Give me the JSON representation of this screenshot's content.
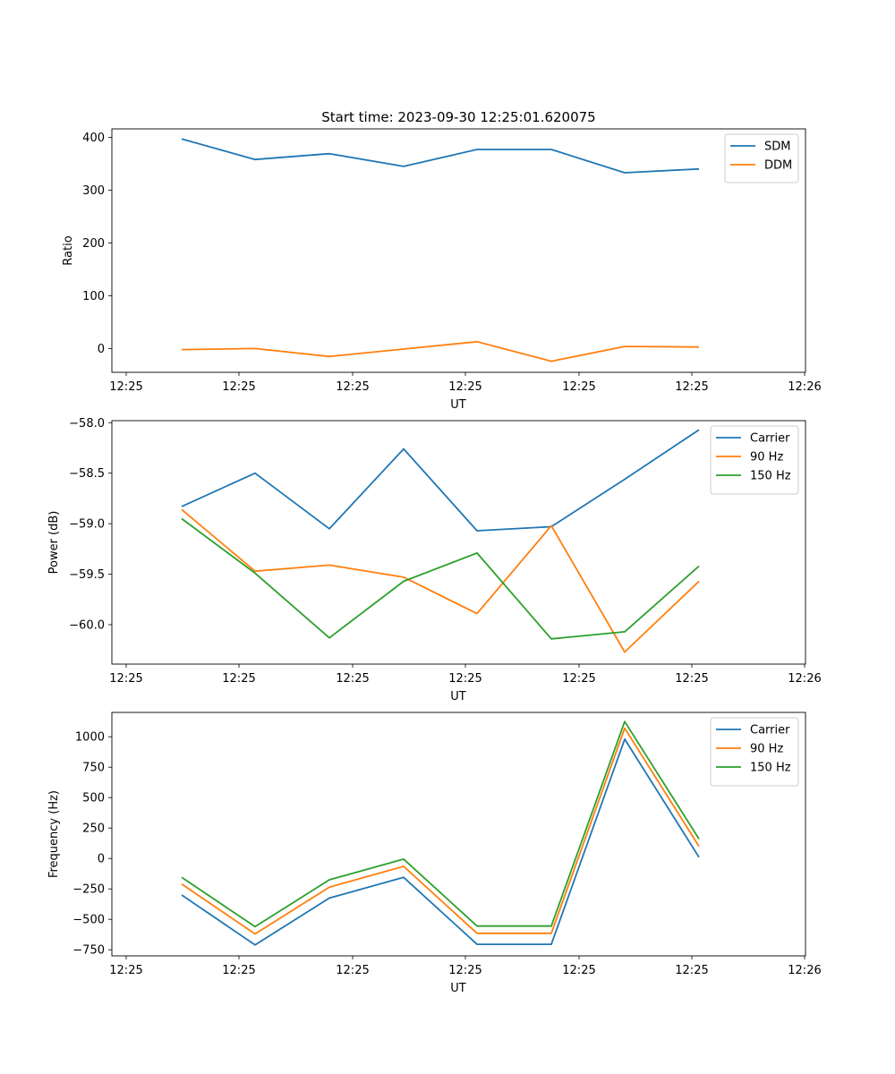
{
  "title": "Start time: 2023-09-30 12:25:01.620075",
  "chart_data": [
    {
      "type": "line",
      "ylabel": "Ratio",
      "xlabel": "UT",
      "x_ticks": [
        "12:25",
        "12:25",
        "12:25",
        "12:25",
        "12:25",
        "12:25",
        "12:25",
        "12:26"
      ],
      "ylim": [
        -45,
        416
      ],
      "y_ticks": [
        0,
        100,
        200,
        300,
        400
      ],
      "legend_position": "top-right",
      "series": [
        {
          "name": "SDM",
          "color": "#1f77b4",
          "values": [
            397,
            358,
            369,
            345,
            377,
            377,
            333,
            340
          ]
        },
        {
          "name": "DDM",
          "color": "#ff7f0e",
          "values": [
            -2,
            0,
            -15,
            -1,
            13,
            -24,
            4,
            3
          ]
        }
      ]
    },
    {
      "type": "line",
      "ylabel": "Power (dB)",
      "xlabel": "UT",
      "x_ticks": [
        "12:25",
        "12:25",
        "12:25",
        "12:25",
        "12:25",
        "12:25",
        "12:25",
        "12:26"
      ],
      "ylim": [
        -60.39,
        -57.98
      ],
      "y_ticks": [
        -58.0,
        -58.5,
        -59.0,
        -59.5,
        -60.0
      ],
      "y_tick_labels": [
        "−58.0",
        "−58.5",
        "−59.0",
        "−59.5",
        "−60.0"
      ],
      "legend_position": "top-right",
      "series": [
        {
          "name": "Carrier",
          "color": "#1f77b4",
          "values": [
            -58.83,
            -58.5,
            -59.05,
            -58.26,
            -59.07,
            -59.03,
            -58.56,
            -58.07
          ]
        },
        {
          "name": "90 Hz",
          "color": "#ff7f0e",
          "values": [
            -58.86,
            -59.47,
            -59.41,
            -59.53,
            -59.89,
            -59.02,
            -60.27,
            -59.57
          ]
        },
        {
          "name": "150 Hz",
          "color": "#2ca02c",
          "values": [
            -58.95,
            -59.49,
            -60.13,
            -59.57,
            -59.29,
            -60.14,
            -60.07,
            -59.42
          ]
        }
      ]
    },
    {
      "type": "line",
      "ylabel": "Frequency (Hz)",
      "xlabel": "UT",
      "x_ticks": [
        "12:25",
        "12:25",
        "12:25",
        "12:25",
        "12:25",
        "12:25",
        "12:25",
        "12:26"
      ],
      "ylim": [
        -800,
        1200
      ],
      "y_ticks": [
        1000,
        750,
        500,
        250,
        0,
        -250,
        -500,
        -750
      ],
      "y_tick_labels": [
        "1000",
        "750",
        "500",
        "250",
        "0",
        "−250",
        "−500",
        "−750"
      ],
      "legend_position": "top-right",
      "series": [
        {
          "name": "Carrier",
          "color": "#1f77b4",
          "values": [
            -300,
            -710,
            -325,
            -155,
            -705,
            -705,
            980,
            10
          ]
        },
        {
          "name": "90 Hz",
          "color": "#ff7f0e",
          "values": [
            -210,
            -620,
            -235,
            -65,
            -615,
            -615,
            1070,
            100
          ]
        },
        {
          "name": "150 Hz",
          "color": "#2ca02c",
          "values": [
            -155,
            -560,
            -175,
            -5,
            -555,
            -555,
            1125,
            160
          ]
        }
      ]
    }
  ]
}
